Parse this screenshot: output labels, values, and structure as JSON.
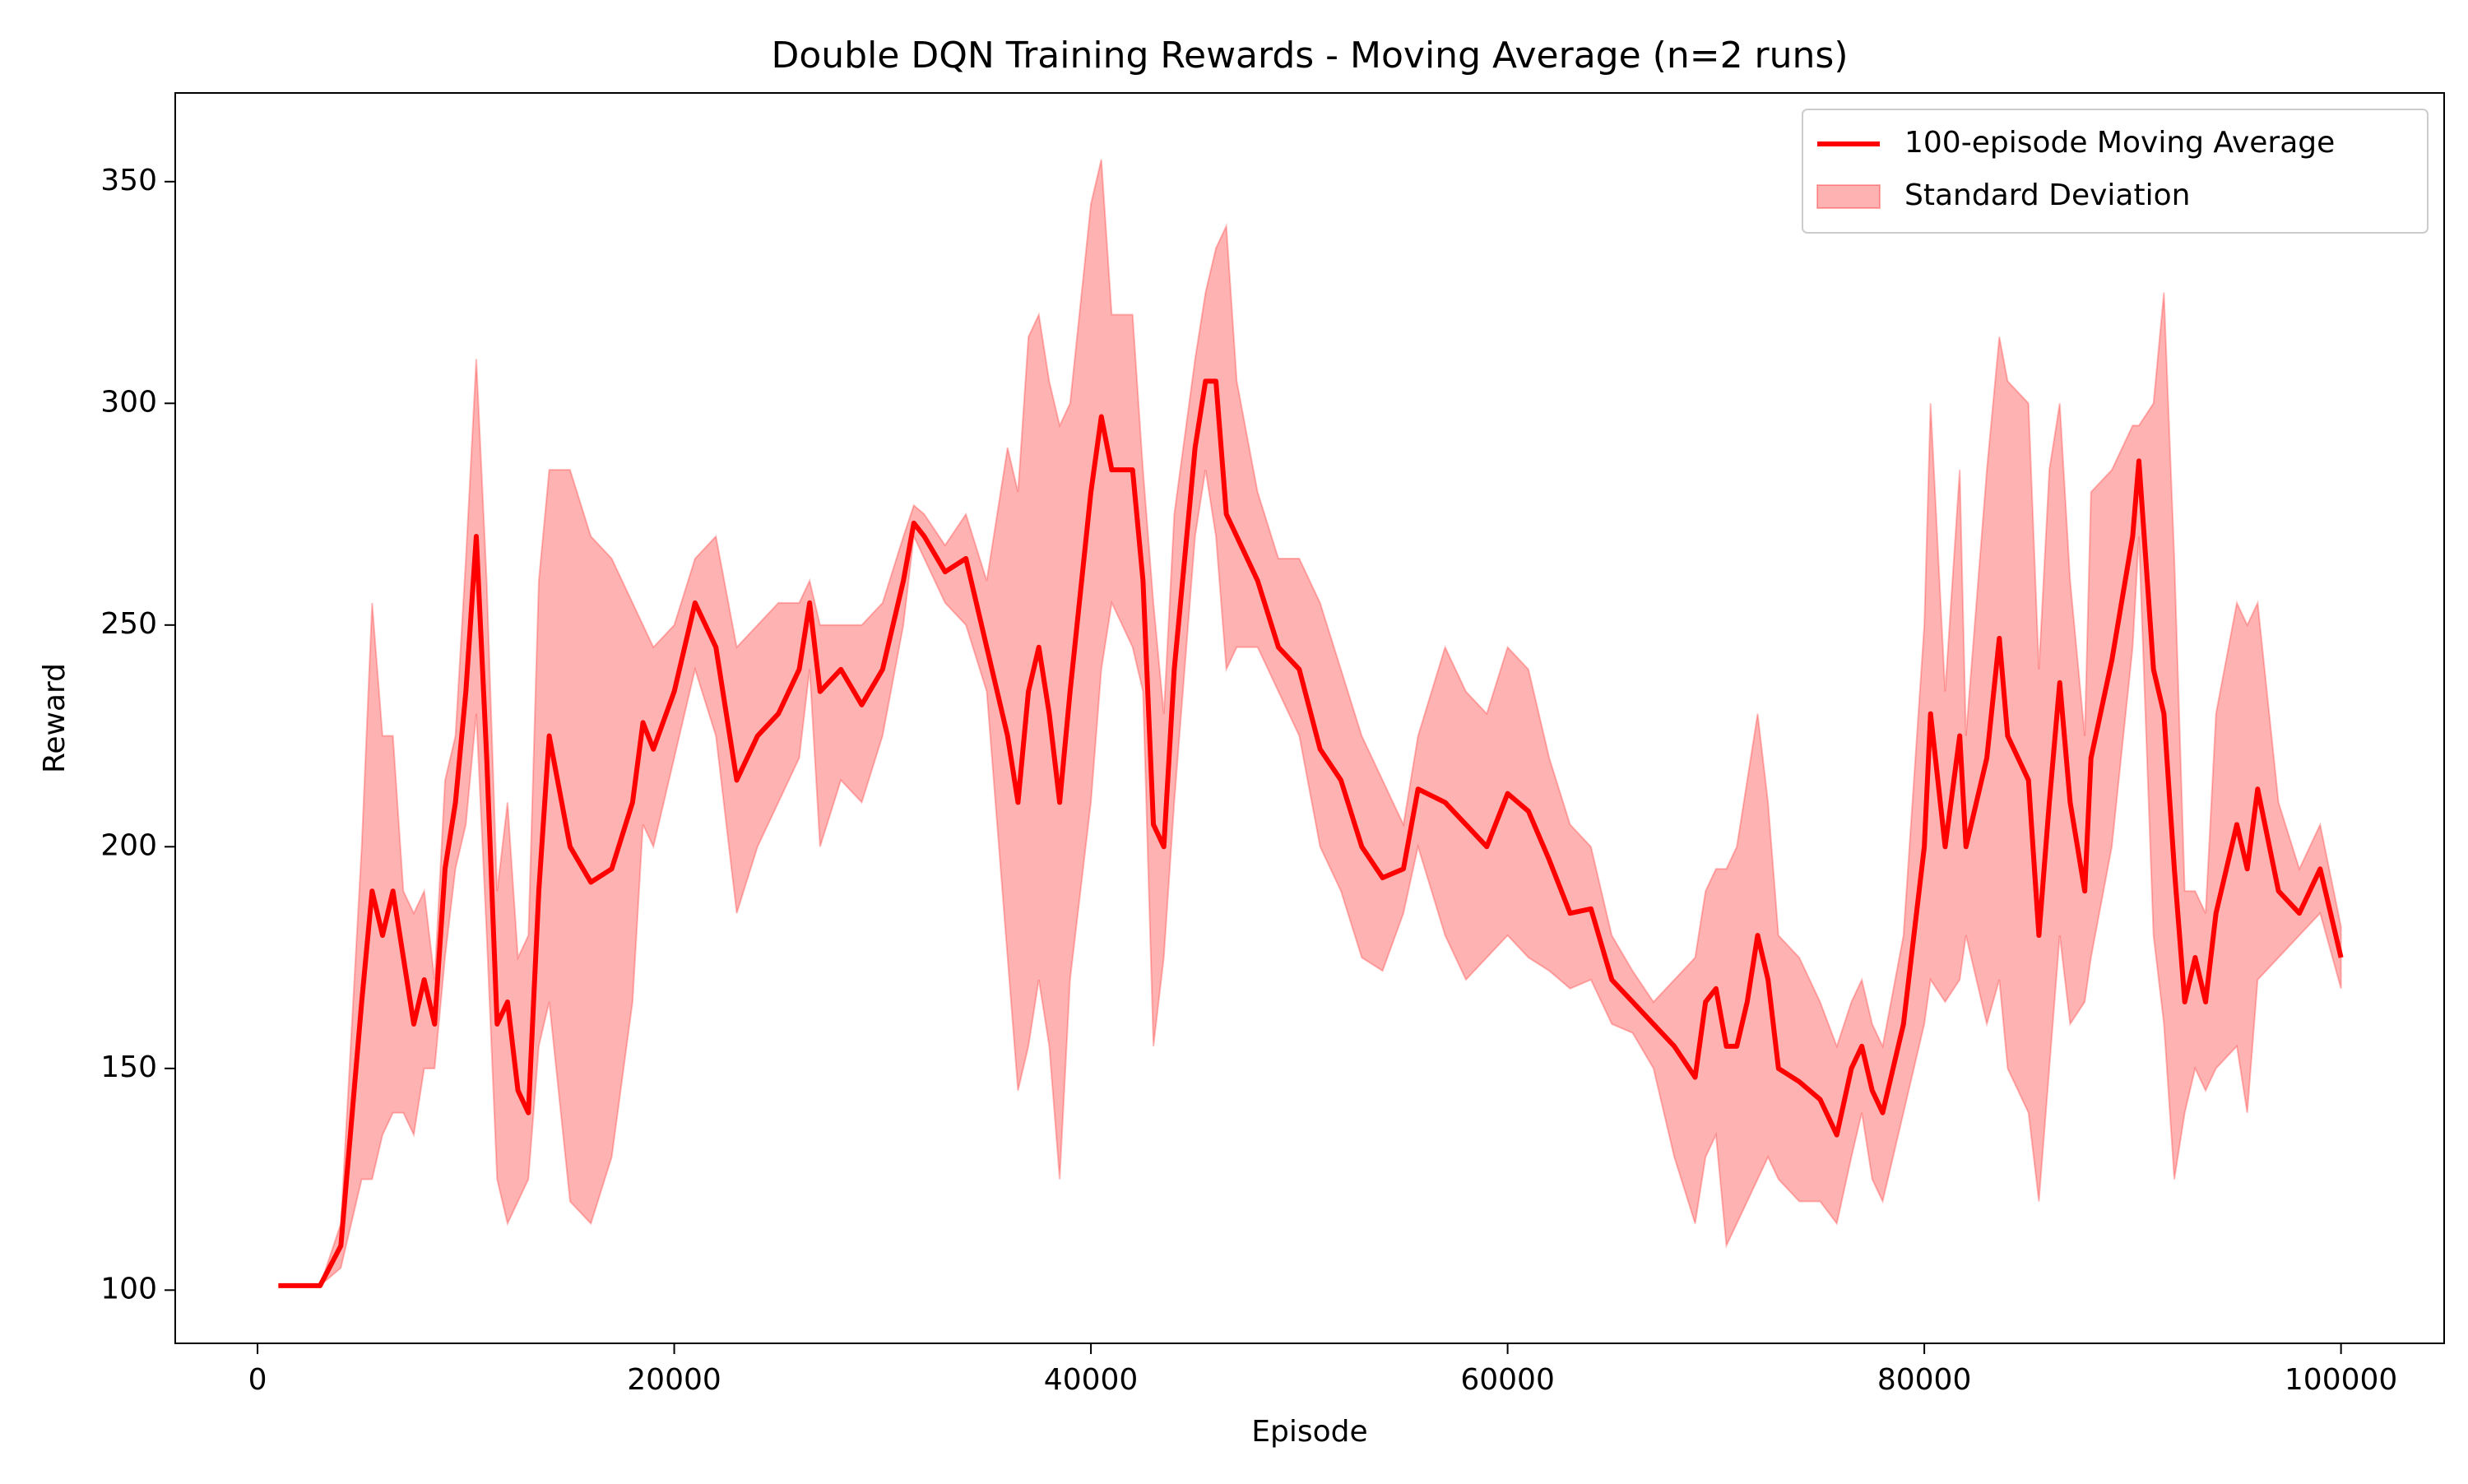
{
  "chart_data": {
    "type": "line",
    "title": "Double DQN Training Rewards - Moving Average (n=2 runs)",
    "xlabel": "Episode",
    "ylabel": "Reward",
    "x": [
      1000,
      3000,
      4000,
      5000,
      5500,
      6000,
      6500,
      7000,
      7500,
      8000,
      8500,
      9000,
      9500,
      10000,
      10500,
      11000,
      11500,
      12000,
      12500,
      13000,
      13500,
      14000,
      15000,
      16000,
      17000,
      18000,
      18500,
      19000,
      20000,
      21000,
      22000,
      23000,
      24000,
      25000,
      26000,
      26500,
      27000,
      28000,
      29000,
      30000,
      31000,
      31500,
      32000,
      33000,
      34000,
      35000,
      36000,
      36500,
      37000,
      37500,
      38000,
      38500,
      39000,
      40000,
      40500,
      41000,
      42000,
      42500,
      43000,
      43500,
      44000,
      45000,
      45500,
      46000,
      46500,
      47000,
      48000,
      49000,
      50000,
      51000,
      52000,
      53000,
      54000,
      55000,
      55700,
      57000,
      58000,
      59000,
      60000,
      61000,
      62000,
      63000,
      64000,
      65000,
      66000,
      67000,
      68000,
      69000,
      69500,
      70000,
      70500,
      71000,
      71500,
      72000,
      72500,
      73000,
      74000,
      75000,
      75800,
      76500,
      77000,
      77500,
      78000,
      79000,
      80000,
      80300,
      81000,
      81700,
      82000,
      83000,
      83600,
      84000,
      85000,
      85500,
      86000,
      86500,
      87000,
      87700,
      88000,
      89000,
      90000,
      90300,
      91000,
      91500,
      92000,
      92500,
      93000,
      93500,
      94000,
      95000,
      95500,
      96000,
      97000,
      98000,
      99000,
      100000
    ],
    "series": [
      {
        "name": "100-episode Moving Average",
        "color": "#ff0000",
        "values": [
          101,
          101,
          110,
          165,
          190,
          180,
          190,
          175,
          160,
          170,
          160,
          195,
          210,
          235,
          270,
          220,
          160,
          165,
          145,
          140,
          190,
          225,
          200,
          192,
          195,
          210,
          228,
          222,
          235,
          255,
          245,
          215,
          225,
          230,
          240,
          255,
          235,
          240,
          232,
          240,
          260,
          273,
          270,
          262,
          265,
          245,
          225,
          210,
          235,
          245,
          230,
          210,
          235,
          280,
          297,
          285,
          285,
          260,
          205,
          200,
          240,
          290,
          305,
          305,
          275,
          270,
          260,
          245,
          240,
          222,
          215,
          200,
          193,
          195,
          213,
          210,
          205,
          200,
          212,
          208,
          197,
          185,
          186,
          170,
          165,
          160,
          155,
          148,
          165,
          168,
          155,
          155,
          165,
          180,
          170,
          150,
          147,
          143,
          135,
          150,
          155,
          145,
          140,
          160,
          200,
          230,
          200,
          225,
          200,
          220,
          247,
          225,
          215,
          180,
          210,
          237,
          210,
          190,
          220,
          242,
          270,
          287,
          240,
          230,
          195,
          165,
          175,
          165,
          185,
          205,
          195,
          213,
          190,
          185,
          195,
          175
        ]
      },
      {
        "name": "Standard Deviation",
        "color": "#ff0000",
        "lower": [
          101,
          101,
          105,
          125,
          125,
          135,
          140,
          140,
          135,
          150,
          150,
          175,
          195,
          205,
          230,
          180,
          125,
          115,
          120,
          125,
          155,
          165,
          120,
          115,
          130,
          165,
          205,
          200,
          220,
          240,
          225,
          185,
          200,
          210,
          220,
          240,
          200,
          215,
          210,
          225,
          250,
          270,
          265,
          255,
          250,
          235,
          175,
          145,
          155,
          170,
          155,
          125,
          170,
          210,
          240,
          255,
          245,
          235,
          155,
          175,
          210,
          270,
          285,
          270,
          240,
          245,
          245,
          235,
          225,
          200,
          190,
          175,
          172,
          185,
          200,
          180,
          170,
          175,
          180,
          175,
          172,
          168,
          170,
          160,
          158,
          150,
          130,
          115,
          130,
          135,
          110,
          115,
          120,
          125,
          130,
          125,
          120,
          120,
          115,
          130,
          140,
          125,
          120,
          140,
          160,
          170,
          165,
          170,
          180,
          160,
          170,
          150,
          140,
          120,
          150,
          180,
          160,
          165,
          175,
          200,
          245,
          270,
          180,
          160,
          125,
          140,
          150,
          145,
          150,
          155,
          140,
          170,
          175,
          180,
          185,
          168
        ],
        "upper": [
          101,
          101,
          115,
          200,
          255,
          225,
          225,
          190,
          185,
          190,
          170,
          215,
          225,
          265,
          310,
          260,
          190,
          210,
          175,
          180,
          260,
          285,
          285,
          270,
          265,
          255,
          250,
          245,
          250,
          265,
          270,
          245,
          250,
          255,
          255,
          260,
          250,
          250,
          250,
          255,
          270,
          277,
          275,
          268,
          275,
          260,
          290,
          280,
          315,
          320,
          305,
          295,
          300,
          345,
          355,
          320,
          320,
          285,
          255,
          230,
          275,
          310,
          325,
          335,
          340,
          305,
          280,
          265,
          265,
          255,
          240,
          225,
          215,
          205,
          225,
          245,
          235,
          230,
          245,
          240,
          220,
          205,
          200,
          180,
          172,
          165,
          170,
          175,
          190,
          195,
          195,
          200,
          215,
          230,
          210,
          180,
          175,
          165,
          155,
          165,
          170,
          160,
          155,
          180,
          250,
          300,
          235,
          285,
          225,
          285,
          315,
          305,
          300,
          240,
          285,
          300,
          260,
          225,
          280,
          285,
          295,
          295,
          300,
          325,
          265,
          190,
          190,
          185,
          230,
          255,
          250,
          255,
          210,
          195,
          205,
          182
        ]
      }
    ],
    "xlim": [
      -3950,
      104950
    ],
    "ylim": [
      88,
      370
    ],
    "xticks": [
      0,
      20000,
      40000,
      60000,
      80000,
      100000
    ],
    "yticks": [
      100,
      150,
      200,
      250,
      300,
      350
    ],
    "legend": "upper right"
  }
}
